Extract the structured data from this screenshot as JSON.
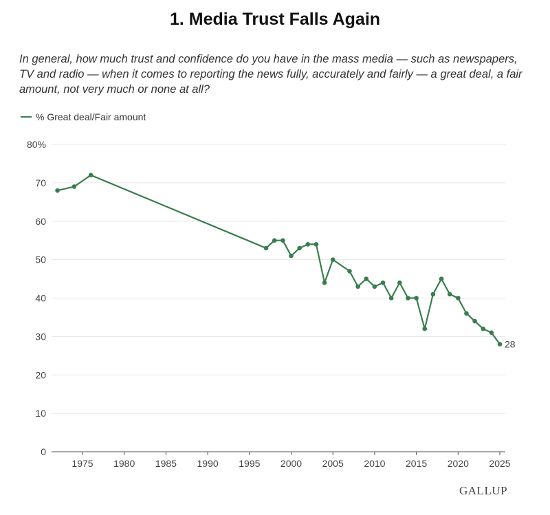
{
  "chart_data": {
    "type": "line",
    "title": "1. Media Trust Falls Again",
    "subtitle": "In general, how much trust and confidence do you have in the mass media — such as newspapers, TV and radio — when it comes to reporting the news fully, accurately and fairly — a great deal, a fair amount, not very much or none at all?",
    "xlabel": "",
    "ylabel": "",
    "ylim": [
      0,
      80
    ],
    "xlim": [
      1971,
      2026
    ],
    "y_ticks": [
      "0",
      "10",
      "20",
      "30",
      "40",
      "50",
      "60",
      "70",
      "80%"
    ],
    "x_ticks": [
      "1975",
      "1980",
      "1985",
      "1990",
      "1995",
      "2000",
      "2005",
      "2010",
      "2015",
      "2020",
      "2025"
    ],
    "grid": true,
    "legend": "top-left",
    "color": "#3a7d4f",
    "end_label": "28",
    "series": [
      {
        "name": "% Great deal/Fair amount",
        "x": [
          1972,
          1974,
          1976,
          1997,
          1998,
          1999,
          2000,
          2001,
          2002,
          2003,
          2004,
          2005,
          2007,
          2008,
          2009,
          2010,
          2011,
          2012,
          2013,
          2014,
          2015,
          2016,
          2017,
          2018,
          2019,
          2020,
          2021,
          2022,
          2023,
          2024,
          2025
        ],
        "values": [
          68,
          69,
          72,
          53,
          55,
          55,
          51,
          53,
          54,
          54,
          44,
          50,
          47,
          43,
          45,
          43,
          44,
          40,
          44,
          40,
          40,
          32,
          41,
          45,
          41,
          40,
          36,
          34,
          32,
          31,
          28
        ]
      }
    ]
  },
  "brand": "GALLUP"
}
